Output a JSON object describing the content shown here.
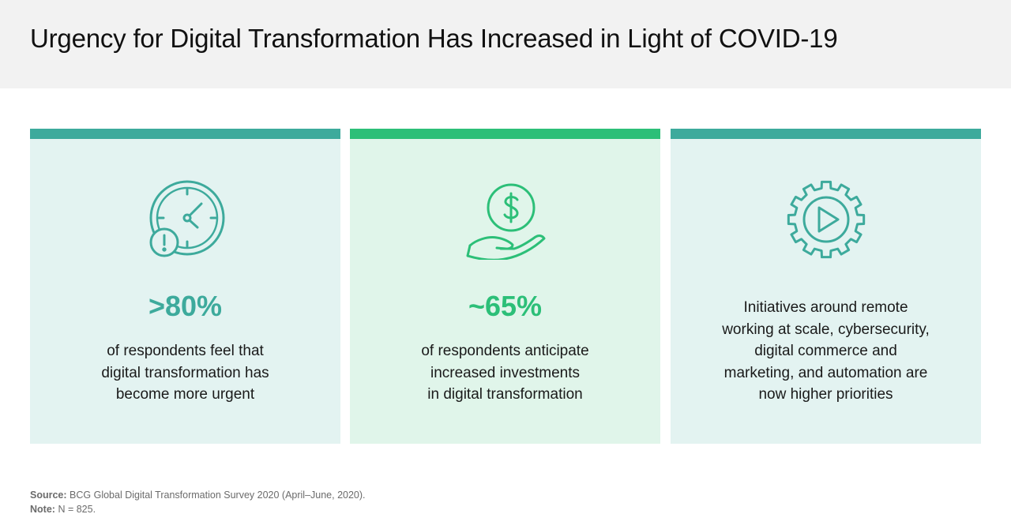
{
  "header": {
    "title": "Urgency for Digital Transformation Has Increased in Light of COVID-19"
  },
  "colors": {
    "teal": "#3daa9c",
    "green": "#2cbf78",
    "card_teal_bg": "#e3f3f1",
    "card_green_bg": "#e0f5ea"
  },
  "cards": [
    {
      "icon": "clock-alert-icon",
      "stat": ">80%",
      "lines": [
        "of respondents feel that",
        "digital transformation has",
        "become more urgent"
      ]
    },
    {
      "icon": "dollar-hand-icon",
      "stat": "~65%",
      "lines": [
        "of respondents anticipate",
        "increased investments",
        "in digital transformation"
      ]
    },
    {
      "icon": "gear-play-icon",
      "stat": "",
      "lines": [
        "Initiatives around remote",
        "working at scale, cybersecurity,",
        "digital commerce and",
        "marketing, and automation are",
        "now higher priorities"
      ]
    }
  ],
  "footnotes": {
    "source_label": "Source:",
    "source_text": "BCG Global Digital Transformation Survey 2020 (April–June, 2020).",
    "note_label": "Note:",
    "note_text": "N = 825."
  }
}
